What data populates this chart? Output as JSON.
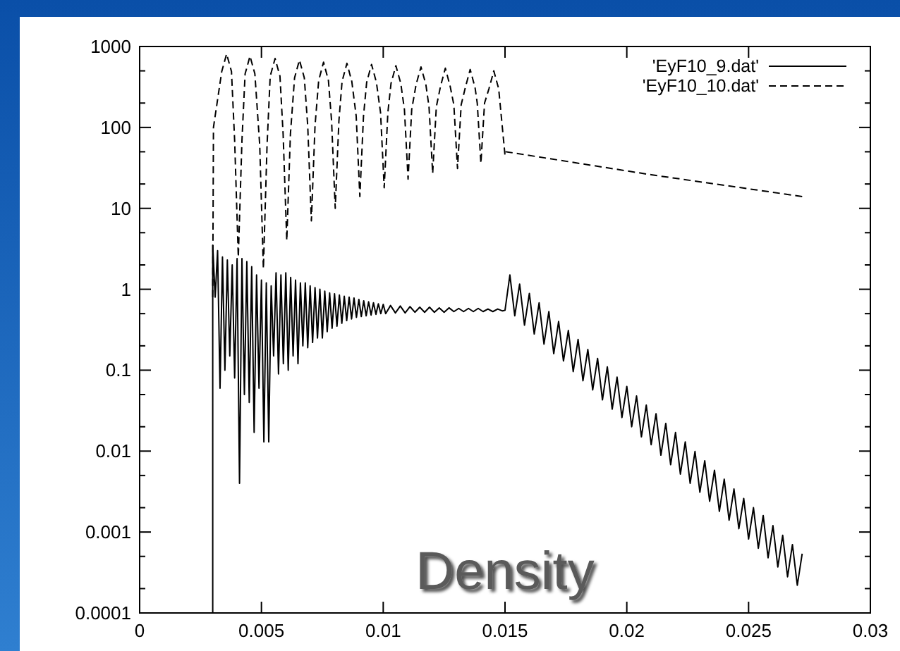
{
  "chart_data": {
    "type": "line",
    "log": "y",
    "legend": "top right",
    "annotations": [
      "Density"
    ],
    "xlim": [
      0,
      0.03
    ],
    "xticks": [
      0,
      0.005,
      0.01,
      0.015,
      0.02,
      0.025,
      0.03
    ],
    "ylim": [
      0.0001,
      1000
    ],
    "yticks": [
      0.0001,
      {
        "value": 0.0002,
        "label": null
      },
      {
        "value": 0.0005,
        "label": null
      },
      0.001,
      {
        "value": 0.002,
        "label": null
      },
      {
        "value": 0.005,
        "label": null
      },
      0.01,
      {
        "value": 0.02,
        "label": null
      },
      {
        "value": 0.05,
        "label": null
      },
      0.1,
      {
        "value": 0.2,
        "label": null
      },
      {
        "value": 0.5,
        "label": null
      },
      1,
      {
        "value": 2,
        "label": null
      },
      {
        "value": 5,
        "label": null
      },
      10,
      {
        "value": 20,
        "label": null
      },
      {
        "value": 50,
        "label": null
      },
      100,
      {
        "value": 200,
        "label": null
      },
      {
        "value": 500,
        "label": null
      },
      1000
    ],
    "series": [
      {
        "name": "'EyF10_9.dat'",
        "color": "#000000",
        "line_style": "solid",
        "x": [
          0.003,
          0.003,
          0.0031,
          0.0032,
          0.0033,
          0.0034,
          0.0035,
          0.0036,
          0.0037,
          0.0038,
          0.0039,
          0.004,
          0.0041,
          0.0042,
          0.0043,
          0.0044,
          0.0045,
          0.0046,
          0.0047,
          0.0048,
          0.0049,
          0.005,
          0.0051,
          0.0052,
          0.0053,
          0.0054,
          0.0055,
          0.0056,
          0.0057,
          0.0058,
          0.0059,
          0.006,
          0.0061,
          0.0062,
          0.0063,
          0.0064,
          0.0065,
          0.0066,
          0.0067,
          0.0068,
          0.0069,
          0.007,
          0.0071,
          0.0072,
          0.0073,
          0.0074,
          0.0075,
          0.0076,
          0.0077,
          0.0078,
          0.0079,
          0.008,
          0.0081,
          0.0082,
          0.0083,
          0.0084,
          0.0085,
          0.0086,
          0.0087,
          0.0088,
          0.0089,
          0.009,
          0.0091,
          0.0092,
          0.0093,
          0.0094,
          0.0095,
          0.0096,
          0.0097,
          0.0098,
          0.0099,
          0.01,
          0.0101,
          0.0103,
          0.0105,
          0.0107,
          0.0109,
          0.0111,
          0.0113,
          0.0115,
          0.0117,
          0.0119,
          0.0121,
          0.0123,
          0.0125,
          0.0127,
          0.0129,
          0.0131,
          0.0133,
          0.0135,
          0.0137,
          0.0139,
          0.0141,
          0.0143,
          0.0145,
          0.0147,
          0.0149,
          0.015,
          0.0152,
          0.0154,
          0.0156,
          0.0158,
          0.016,
          0.0162,
          0.0164,
          0.0166,
          0.0168,
          0.017,
          0.0172,
          0.0174,
          0.0176,
          0.0178,
          0.018,
          0.0182,
          0.0184,
          0.0186,
          0.0188,
          0.019,
          0.0192,
          0.0194,
          0.0196,
          0.0198,
          0.02,
          0.0202,
          0.0204,
          0.0206,
          0.0208,
          0.021,
          0.0212,
          0.0214,
          0.0216,
          0.0218,
          0.022,
          0.0222,
          0.0224,
          0.0226,
          0.0228,
          0.023,
          0.0232,
          0.0234,
          0.0236,
          0.0238,
          0.024,
          0.0242,
          0.0244,
          0.0246,
          0.0248,
          0.025,
          0.0252,
          0.0254,
          0.0256,
          0.0258,
          0.026,
          0.0262,
          0.0264,
          0.0266,
          0.0268,
          0.027,
          0.0272
        ],
        "values": [
          0.0001,
          3.5,
          0.8,
          3,
          0.06,
          2.5,
          0.1,
          2.3,
          0.15,
          2,
          0.08,
          2.4,
          0.004,
          2.4,
          0.05,
          2.2,
          0.04,
          1.9,
          0.017,
          1.5,
          0.06,
          1.3,
          0.013,
          1.2,
          0.013,
          1.1,
          0.15,
          1.6,
          0.09,
          1.5,
          0.12,
          1.6,
          0.1,
          1.4,
          0.15,
          1.3,
          0.12,
          1.2,
          0.2,
          1.2,
          0.19,
          1.1,
          0.22,
          1.05,
          0.25,
          1,
          0.25,
          0.95,
          0.3,
          0.9,
          0.33,
          0.88,
          0.35,
          0.85,
          0.38,
          0.82,
          0.41,
          0.8,
          0.43,
          0.78,
          0.45,
          0.75,
          0.46,
          0.72,
          0.47,
          0.7,
          0.48,
          0.68,
          0.49,
          0.66,
          0.5,
          0.65,
          0.5,
          0.63,
          0.51,
          0.62,
          0.51,
          0.61,
          0.52,
          0.6,
          0.52,
          0.6,
          0.52,
          0.59,
          0.52,
          0.59,
          0.53,
          0.58,
          0.53,
          0.58,
          0.53,
          0.58,
          0.53,
          0.57,
          0.53,
          0.57,
          0.54,
          0.55,
          1.5,
          0.47,
          1.16,
          0.36,
          0.89,
          0.28,
          0.68,
          0.21,
          0.53,
          0.16,
          0.4,
          0.13,
          0.31,
          0.096,
          0.24,
          0.074,
          0.18,
          0.057,
          0.14,
          0.043,
          0.11,
          0.033,
          0.082,
          0.026,
          0.063,
          0.02,
          0.048,
          0.015,
          0.037,
          0.012,
          0.029,
          0.0089,
          0.022,
          0.0068,
          0.017,
          0.0052,
          0.013,
          0.004,
          0.0099,
          0.0031,
          0.0076,
          0.0024,
          0.0058,
          0.0018,
          0.0045,
          0.0014,
          0.0034,
          0.0011,
          0.0026,
          0.00082,
          0.002,
          0.00063,
          0.0016,
          0.00048,
          0.0012,
          0.00037,
          0.00091,
          0.00028,
          0.0007,
          0.00022,
          0.00054
        ]
      },
      {
        "name": "'EyF10_10.dat'",
        "color": "#000000",
        "line_style": "dashed",
        "x": [
          0.003,
          0.00303,
          0.00337,
          0.00357,
          0.00377,
          0.0039,
          0.00405,
          0.0042,
          0.00433,
          0.00453,
          0.00473,
          0.00493,
          0.00508,
          0.00523,
          0.00536,
          0.00556,
          0.00576,
          0.00589,
          0.00604,
          0.00619,
          0.00636,
          0.00656,
          0.00676,
          0.0069,
          0.00705,
          0.0072,
          0.00735,
          0.00755,
          0.00775,
          0.00788,
          0.00803,
          0.00818,
          0.00831,
          0.00851,
          0.00871,
          0.00889,
          0.00904,
          0.00919,
          0.00932,
          0.00952,
          0.00972,
          0.00989,
          0.01004,
          0.01019,
          0.01032,
          0.01052,
          0.01072,
          0.01087,
          0.01102,
          0.01117,
          0.01135,
          0.01155,
          0.01175,
          0.01188,
          0.01203,
          0.01218,
          0.01235,
          0.01255,
          0.01275,
          0.0129,
          0.01305,
          0.0132,
          0.01337,
          0.01357,
          0.01377,
          0.01386,
          0.01401,
          0.01416,
          0.01434,
          0.01454,
          0.01474,
          0.015,
          0.01505,
          0.021,
          0.0272
        ],
        "values": [
          0.8,
          100,
          490,
          810,
          490,
          69,
          2.5,
          69,
          460,
          760,
          460,
          60,
          1.8,
          60,
          430,
          710,
          430,
          83,
          4,
          83,
          410,
          680,
          410,
          105,
          7,
          105,
          380,
          640,
          380,
          120,
          10,
          120,
          370,
          620,
          370,
          138,
          14,
          138,
          360,
          600,
          360,
          152,
          18,
          152,
          350,
          580,
          350,
          167,
          23,
          167,
          340,
          560,
          340,
          180,
          27,
          180,
          320,
          540,
          320,
          190,
          31,
          190,
          310,
          520,
          310,
          200,
          36,
          200,
          300,
          500,
          300,
          45,
          50,
          26,
          14
        ]
      }
    ]
  }
}
